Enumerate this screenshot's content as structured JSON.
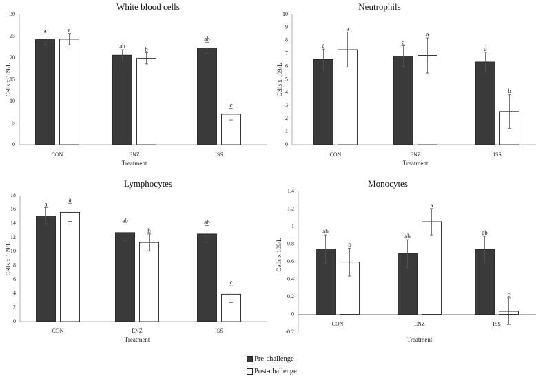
{
  "chart_data": [
    {
      "type": "bar",
      "title": "White blood cells",
      "xlabel": "Treatment",
      "ylabel": "Cells x 109/L",
      "ylim": [
        0,
        30
      ],
      "yticks": [
        0,
        5,
        10,
        15,
        20,
        25,
        30
      ],
      "categories": [
        "CON",
        "ENZ",
        "ISS"
      ],
      "series": [
        {
          "name": "Pre-challenge",
          "values": [
            24.2,
            20.6,
            22.3
          ],
          "errors": [
            1.3,
            1.3,
            1.3
          ],
          "letters": [
            "a",
            "ab",
            "ab"
          ]
        },
        {
          "name": "Post-challenge",
          "values": [
            24.3,
            19.9,
            7.0
          ],
          "errors": [
            1.3,
            1.3,
            1.3
          ],
          "letters": [
            "a",
            "b",
            "c"
          ]
        }
      ]
    },
    {
      "type": "bar",
      "title": "Neutrophils",
      "xlabel": "Treatment",
      "ylabel": "Cells x 109/L",
      "ylim": [
        0,
        10
      ],
      "yticks": [
        0,
        1,
        2,
        3,
        4,
        5,
        6,
        7,
        8,
        9,
        10
      ],
      "categories": [
        "CON",
        "ENZ",
        "ISS"
      ],
      "series": [
        {
          "name": "Pre-challenge",
          "values": [
            6.55,
            6.8,
            6.35
          ],
          "errors": [
            0.8,
            0.8,
            0.75
          ],
          "letters": [
            "a",
            "a",
            "a"
          ]
        },
        {
          "name": "Post-challenge",
          "values": [
            7.3,
            6.85,
            2.55
          ],
          "errors": [
            1.35,
            1.35,
            1.3
          ],
          "letters": [
            "a",
            "a",
            "b"
          ]
        }
      ]
    },
    {
      "type": "bar",
      "title": "Lymphocytes",
      "xlabel": "Treatment",
      "ylabel": "Cells x 109/L",
      "ylim": [
        0,
        18
      ],
      "yticks": [
        0,
        2,
        4,
        6,
        8,
        10,
        12,
        14,
        16,
        18
      ],
      "categories": [
        "CON",
        "ENZ",
        "ISS"
      ],
      "series": [
        {
          "name": "Pre-challenge",
          "values": [
            15.1,
            12.7,
            12.5
          ],
          "errors": [
            1.2,
            1.2,
            1.2
          ],
          "letters": [
            "a",
            "ab",
            "ab"
          ]
        },
        {
          "name": "Post-challenge",
          "values": [
            15.6,
            11.3,
            3.9
          ],
          "errors": [
            1.3,
            1.2,
            1.2
          ],
          "letters": [
            "a",
            "b",
            "c"
          ]
        }
      ]
    },
    {
      "type": "bar",
      "title": "Monocytes",
      "xlabel": "Treatment",
      "ylabel": "Cells x 109/L",
      "ylim": [
        -0.2,
        1.4
      ],
      "yticks": [
        -0.2,
        0,
        0.2,
        0.4,
        0.6,
        0.8,
        1,
        1.2,
        1.4
      ],
      "categories": [
        "CON",
        "ENZ",
        "ISS"
      ],
      "series": [
        {
          "name": "Pre-challenge",
          "values": [
            0.745,
            0.69,
            0.74
          ],
          "errors": [
            0.16,
            0.16,
            0.15
          ],
          "letters": [
            "ab",
            "ab",
            "ab"
          ]
        },
        {
          "name": "Post-challenge",
          "values": [
            0.595,
            1.055,
            0.035
          ],
          "errors": [
            0.16,
            0.15,
            0.15
          ],
          "letters": [
            "b",
            "a",
            "c"
          ]
        }
      ]
    }
  ],
  "legend": {
    "items": [
      {
        "label": "Pre-challenge",
        "color": "#3a3a3a"
      },
      {
        "label": "Post-challenge",
        "color": "#ffffff"
      }
    ]
  }
}
